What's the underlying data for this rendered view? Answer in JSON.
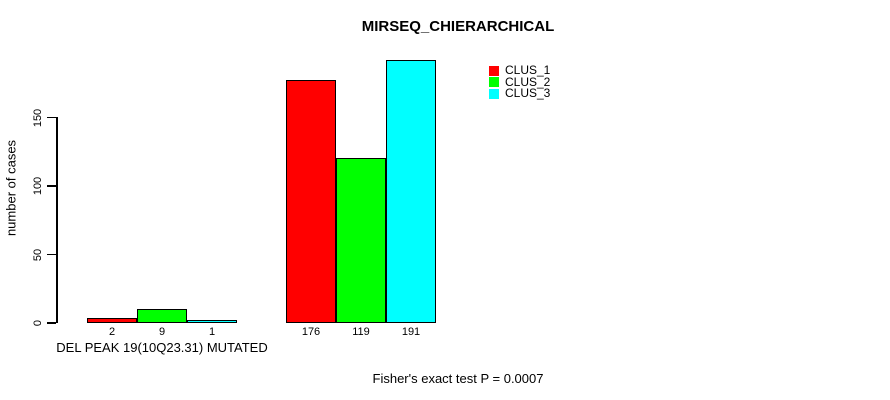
{
  "chart_data": {
    "type": "bar",
    "title": "MIRSEQ_CHIERARCHICAL",
    "ylabel": "number of cases",
    "xlabel": "DEL PEAK 19(10Q23.31) MUTATED",
    "annotation": "Fisher's exact test P = 0.0007",
    "ylim": [
      0,
      195
    ],
    "yticks": [
      0,
      50,
      100,
      150
    ],
    "grid": false,
    "legend_position": "top-right",
    "bar_outline_color": "#000000",
    "background_color": "#ffffff",
    "bar_value_labels_shown": true,
    "series": [
      {
        "name": "CLUS_1",
        "color": "#ff0000",
        "values": [
          2,
          176
        ]
      },
      {
        "name": "CLUS_2",
        "color": "#00ff00",
        "values": [
          9,
          119
        ]
      },
      {
        "name": "CLUS_3",
        "color": "#00ffff",
        "values": [
          1,
          191
        ]
      }
    ]
  }
}
